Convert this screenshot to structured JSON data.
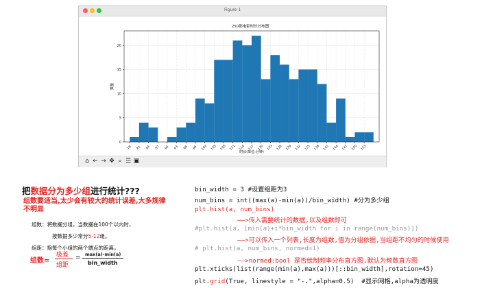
{
  "window": {
    "title": "Figure 1"
  },
  "chart_data": {
    "type": "bar",
    "title": "250部电影时长分布图",
    "xlabel": "时长(单位:分钟)",
    "ylabel": "数量",
    "bin_width": 3,
    "x_ticks": [
      "78",
      "81",
      "84",
      "87",
      "90",
      "93",
      "96",
      "99",
      "102",
      "105",
      "108",
      "111",
      "114",
      "117",
      "120",
      "123",
      "126",
      "129",
      "132",
      "135",
      "138",
      "141",
      "144",
      "147",
      "150",
      "153"
    ],
    "bin_edges_start": 78,
    "values": [
      1,
      4,
      3,
      0,
      1,
      3,
      4,
      9,
      8,
      17,
      17,
      21,
      20,
      22,
      13,
      18,
      16,
      13,
      15,
      15,
      12,
      4,
      9,
      1,
      2,
      2
    ],
    "ylim": [
      0,
      23
    ],
    "y_ticks": [
      "0",
      "5",
      "10",
      "15",
      "20"
    ],
    "bar_color": "#1f77b4",
    "grid": true
  },
  "toolbar": {
    "icons": [
      "home-icon",
      "back-icon",
      "forward-icon",
      "pan-icon",
      "zoom-icon",
      "configure-icon",
      "save-icon"
    ]
  },
  "notes": {
    "heading_a": "把",
    "heading_hl": "数据分为多少组",
    "heading_b": "进行统计???",
    "subtitle": "组数要适当,太少会有较大的统计误差,大多规律不明显",
    "line1": "组数：将数据分组，当数据在100个以内时，",
    "line2_a": "按数据多少常分",
    "line2_hl": "5-12",
    "line2_b": "组。",
    "line3": "组距：指每个小组的两个端点的距离，",
    "formula_lhs": "组数=",
    "formula_num": "极差",
    "formula_den": "组距",
    "formula_eq": "=",
    "formula_num2": "max(a)-min(a)",
    "formula_den2": "bin_width"
  },
  "code": {
    "l1": "bin_width = 3 #设置组距为3",
    "l2": "num_bins = int((max(a)-min(a))/bin_width) #分为多少组",
    "l3": "plt.hist(a, num_bins)",
    "l4": "——>传入需要统计的数据,以及组数即可",
    "l5": "#plt.hist(a, [min(a)+i*bin_width for i in range(num_bins)])",
    "l6": "——>可以传入一个列表,长度为组数,值为分组依据,当组距不均匀的时候使用",
    "l7": "# plt.hist(a, num_bins, normed=1)",
    "l8": "——>normed:bool 是否绘制频率分布直方图,默认为频数直方图",
    "l9": "plt.xticks(list(range(min(a),max(a)))[::bin_width],rotation=45)",
    "l10a": "plt.",
    "l10hl": "grid",
    "l10b": "(True, linestyle = \"-.\",alpha=0.5)  #显示网格,alpha为透明度"
  }
}
